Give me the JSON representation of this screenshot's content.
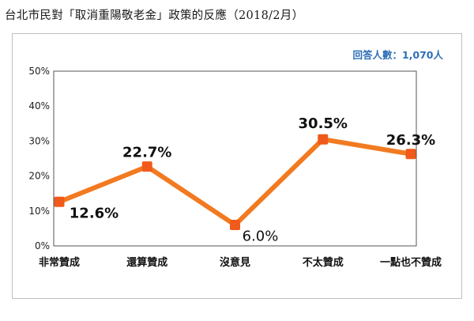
{
  "title": "台北市民對「取消重陽敬老金」政策的反應（2018/2月）",
  "respondents": "回答人數：1,070人",
  "chart_data": {
    "type": "line",
    "categories": [
      "非常贊成",
      "還算贊成",
      "沒意見",
      "不太贊成",
      "一點也不贊成"
    ],
    "values": [
      12.6,
      22.7,
      6.0,
      30.5,
      26.3
    ],
    "data_labels": [
      "12.6%",
      "22.7%",
      "6.0%",
      "30.5%",
      "26.3%"
    ],
    "yticks": [
      "0%",
      "10%",
      "20%",
      "30%",
      "40%",
      "50%"
    ],
    "ylim": [
      0,
      50
    ],
    "grid": false,
    "line_color": "#f27a20",
    "marker_color": "#f05a1a"
  }
}
